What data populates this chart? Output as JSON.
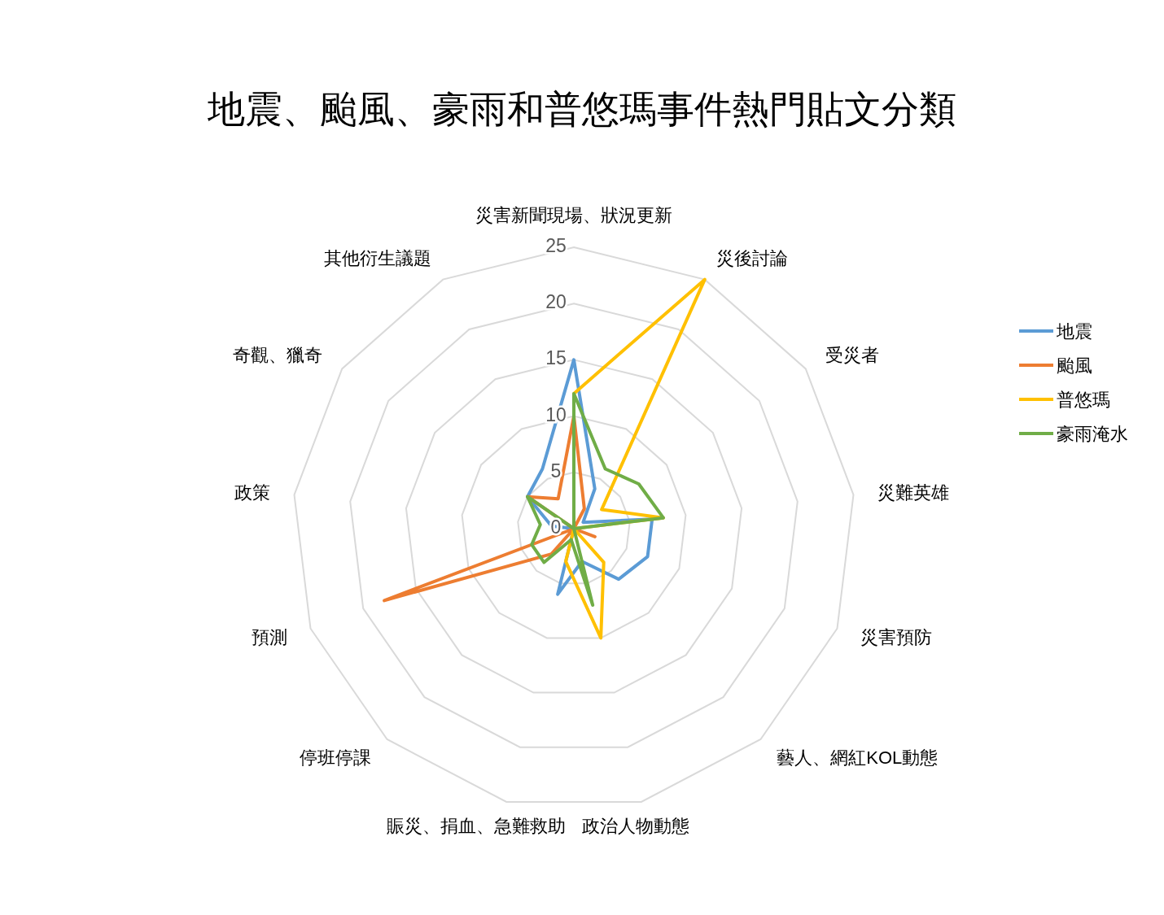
{
  "chart_data": {
    "type": "radar",
    "title": "地震、颱風、豪雨和普悠瑪事件熱門貼文分類",
    "categories": [
      "災害新聞現場、狀況更新",
      "災後討論",
      "受災者",
      "災難英雄",
      "災害預防",
      "藝人、網紅KOL動態",
      "政治人物動態",
      "賑災、捐血、急難救助",
      "停班停課",
      "預測",
      "政策",
      "奇觀、獵奇",
      "其他衍生議題"
    ],
    "series": [
      {
        "name": "地震",
        "color": "#5b9bd5",
        "values": [
          15,
          4,
          1,
          7,
          7,
          6,
          3,
          6,
          0,
          0,
          2,
          5,
          6
        ]
      },
      {
        "name": "颱風",
        "color": "#ed7d31",
        "values": [
          10,
          2,
          0,
          0,
          2,
          0,
          0,
          0,
          3,
          18,
          0,
          5,
          3
        ]
      },
      {
        "name": "普悠瑪",
        "color": "#ffc000",
        "values": [
          12,
          25,
          3,
          8,
          0,
          4,
          10,
          3,
          0,
          0,
          0,
          0,
          0
        ]
      },
      {
        "name": "豪雨淹水",
        "color": "#70ad47",
        "values": [
          12,
          6,
          7,
          8,
          0,
          0,
          7,
          1,
          4,
          4,
          3,
          5,
          0
        ]
      }
    ],
    "ylim": [
      0,
      25
    ],
    "yticks": [
      0,
      5,
      10,
      15,
      20,
      25
    ],
    "grid": true,
    "legend": "right",
    "marker": "none",
    "line_style": "solid"
  }
}
